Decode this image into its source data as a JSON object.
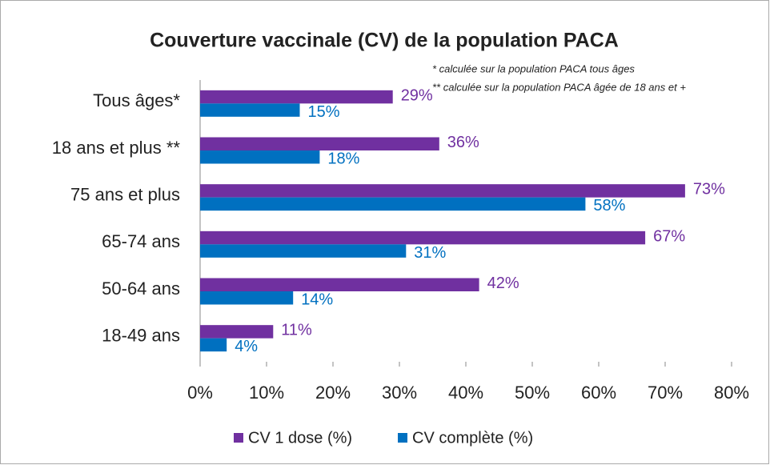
{
  "chart_data": {
    "type": "hbar",
    "title": "Couverture vaccinale (CV) de la population PACA",
    "annotations": [
      "* calculée sur la population PACA tous âges",
      "** calculée sur la population PACA âgée de 18 ans et +"
    ],
    "categories": [
      "Tous âges*",
      "18 ans et plus **",
      "75 ans et plus",
      "65-74 ans",
      "50-64 ans",
      "18-49 ans"
    ],
    "series": [
      {
        "name": "CV 1 dose (%)",
        "color": "#7030a0",
        "values": [
          29,
          36,
          73,
          67,
          42,
          11
        ],
        "value_labels": [
          "29%",
          "36%",
          "73%",
          "67%",
          "42%",
          "11%"
        ]
      },
      {
        "name": "CV complète (%)",
        "color": "#0070c0",
        "values": [
          15,
          18,
          58,
          31,
          14,
          4
        ],
        "value_labels": [
          "15%",
          "18%",
          "58%",
          "31%",
          "14%",
          "4%"
        ]
      }
    ],
    "xlim": [
      0,
      80
    ],
    "xticks": [
      {
        "value": 0,
        "label": "0%"
      },
      {
        "value": 10,
        "label": "10%"
      },
      {
        "value": 20,
        "label": "20%"
      },
      {
        "value": 30,
        "label": "30%"
      },
      {
        "value": 40,
        "label": "40%"
      },
      {
        "value": 50,
        "label": "50%"
      },
      {
        "value": 60,
        "label": "60%"
      },
      {
        "value": 70,
        "label": "70%"
      },
      {
        "value": 80,
        "label": "80%"
      }
    ],
    "legend": "bottom"
  }
}
